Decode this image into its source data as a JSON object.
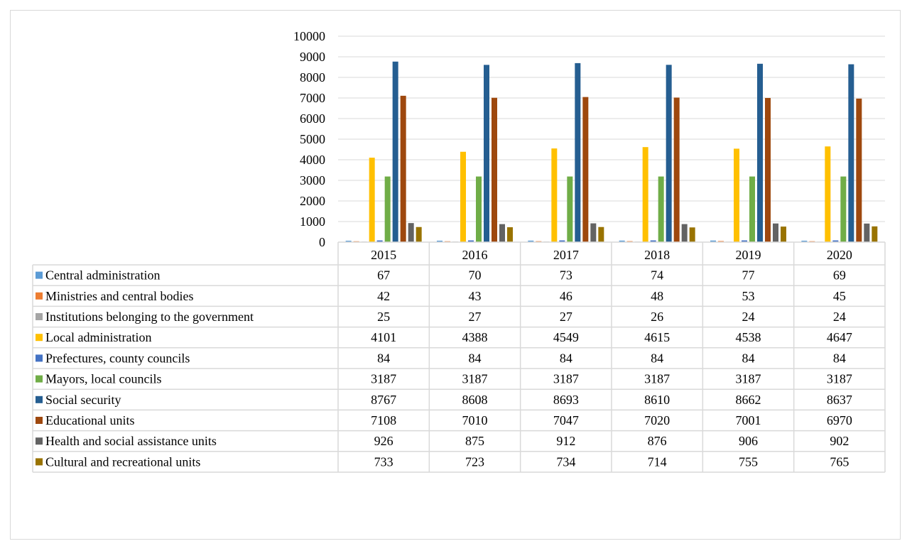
{
  "chart_data": {
    "type": "bar",
    "title": "",
    "xlabel": "",
    "ylabel": "",
    "ylim": [
      0,
      10000
    ],
    "y_ticks": [
      0,
      1000,
      2000,
      3000,
      4000,
      5000,
      6000,
      7000,
      8000,
      9000,
      10000
    ],
    "grid": true,
    "legend": "data-table",
    "categories": [
      "2015",
      "2016",
      "2017",
      "2018",
      "2019",
      "2020"
    ],
    "series": [
      {
        "name": "Central administration",
        "color": "#5B9BD5",
        "values": [
          67,
          70,
          73,
          74,
          77,
          69
        ]
      },
      {
        "name": "Ministries and central bodies",
        "color": "#ED7D31",
        "values": [
          42,
          43,
          46,
          48,
          53,
          45
        ]
      },
      {
        "name": "Institutions belonging to the government",
        "color": "#A5A5A5",
        "values": [
          25,
          27,
          27,
          26,
          24,
          24
        ]
      },
      {
        "name": "Local administration",
        "color": "#FFC000",
        "values": [
          4101,
          4388,
          4549,
          4615,
          4538,
          4647
        ]
      },
      {
        "name": "Prefectures, county councils",
        "color": "#4472C4",
        "values": [
          84,
          84,
          84,
          84,
          84,
          84
        ]
      },
      {
        "name": "Mayors, local councils",
        "color": "#70AD47",
        "values": [
          3187,
          3187,
          3187,
          3187,
          3187,
          3187
        ]
      },
      {
        "name": "Social security",
        "color": "#255E91",
        "values": [
          8767,
          8608,
          8693,
          8610,
          8662,
          8637
        ]
      },
      {
        "name": "Educational units",
        "color": "#9E480E",
        "values": [
          7108,
          7010,
          7047,
          7020,
          7001,
          6970
        ]
      },
      {
        "name": "Health and social assistance units",
        "color": "#636363",
        "values": [
          926,
          875,
          912,
          876,
          906,
          902
        ]
      },
      {
        "name": "Cultural and recreational units",
        "color": "#997300",
        "values": [
          733,
          723,
          734,
          714,
          755,
          765
        ]
      }
    ]
  }
}
